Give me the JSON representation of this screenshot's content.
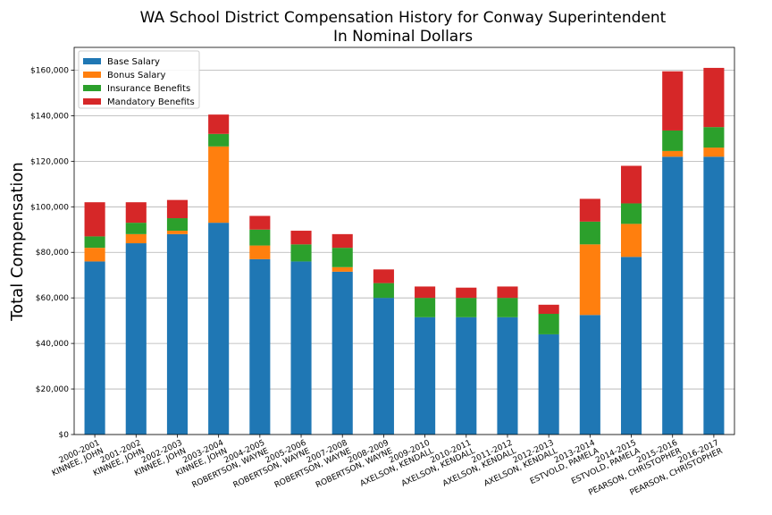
{
  "chart_data": {
    "type": "bar",
    "stacked": true,
    "title": "WA School District Compensation History for Conway Superintendent",
    "subtitle": "In Nominal Dollars",
    "ylabel": "Total Compensation",
    "xlabel": "",
    "ylim": [
      0,
      170000
    ],
    "yticks": [
      0,
      20000,
      40000,
      60000,
      80000,
      100000,
      120000,
      140000,
      160000
    ],
    "ytick_labels": [
      "$0",
      "$20,000",
      "$40,000",
      "$60,000",
      "$80,000",
      "$100,000",
      "$120,000",
      "$140,000",
      "$160,000"
    ],
    "grid": "horizontal",
    "legend_position": "top-left",
    "categories": [
      {
        "year": "2000-2001",
        "name": "KINNEE, JOHN"
      },
      {
        "year": "2001-2002",
        "name": "KINNEE, JOHN"
      },
      {
        "year": "2002-2003",
        "name": "KINNEE, JOHN"
      },
      {
        "year": "2003-2004",
        "name": "KINNEE, JOHN"
      },
      {
        "year": "2004-2005",
        "name": "ROBERTSON, WAYNE"
      },
      {
        "year": "2005-2006",
        "name": "ROBERTSON, WAYNE"
      },
      {
        "year": "2007-2008",
        "name": "ROBERTSON, WAYNE"
      },
      {
        "year": "2008-2009",
        "name": "ROBERTSON, WAYNE"
      },
      {
        "year": "2009-2010",
        "name": "AXELSON, KENDALL"
      },
      {
        "year": "2010-2011",
        "name": "AXELSON, KENDALL"
      },
      {
        "year": "2011-2012",
        "name": "AXELSON, KENDALL"
      },
      {
        "year": "2012-2013",
        "name": "AXELSON, KENDALL"
      },
      {
        "year": "2013-2014",
        "name": "ESTVOLD, PAMELA"
      },
      {
        "year": "2014-2015",
        "name": "ESTVOLD, PAMELA"
      },
      {
        "year": "2015-2016",
        "name": "PEARSON, CHRISTOPHER"
      },
      {
        "year": "2016-2017",
        "name": "PEARSON, CHRISTOPHER"
      }
    ],
    "series": [
      {
        "name": "Base Salary",
        "color": "#1f77b4",
        "values": [
          76000,
          84000,
          88000,
          93000,
          77000,
          76000,
          71500,
          60000,
          51500,
          51500,
          51500,
          44000,
          52500,
          78000,
          122000,
          122000
        ]
      },
      {
        "name": "Bonus Salary",
        "color": "#ff7f0e",
        "values": [
          6000,
          4000,
          1500,
          33500,
          6000,
          0,
          2000,
          0,
          0,
          0,
          0,
          0,
          31000,
          14500,
          2500,
          4000
        ]
      },
      {
        "name": "Insurance Benefits",
        "color": "#2ca02c",
        "values": [
          5000,
          5000,
          5500,
          5500,
          7000,
          7500,
          8500,
          6500,
          8500,
          8500,
          8500,
          9000,
          10000,
          9000,
          9000,
          9000
        ]
      },
      {
        "name": "Mandatory Benefits",
        "color": "#d62728",
        "values": [
          15000,
          9000,
          8000,
          8500,
          6000,
          6000,
          6000,
          6000,
          5000,
          4500,
          5000,
          4000,
          10000,
          16500,
          26000,
          26000
        ]
      }
    ]
  }
}
